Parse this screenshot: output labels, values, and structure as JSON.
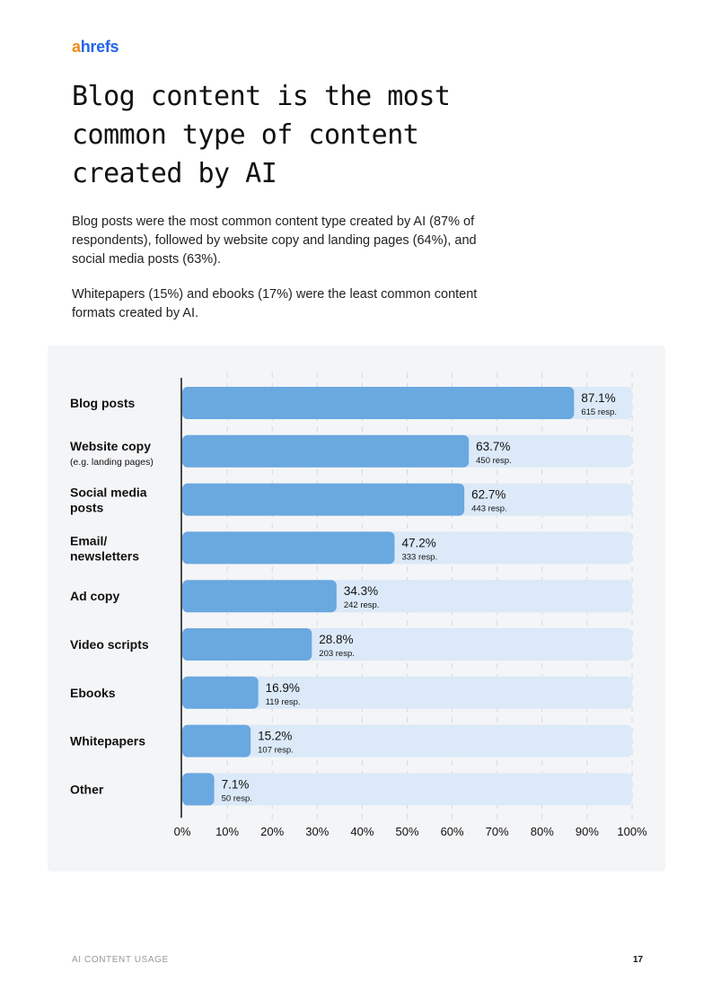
{
  "brand": {
    "logo_a": "a",
    "logo_rest": "hrefs"
  },
  "title": "Blog content is the most common type of content created by AI",
  "paragraphs": [
    "Blog posts were the most common content type created by AI (87% of respondents), followed by website copy and landing pages (64%), and social media posts (63%).",
    "Whitepapers (15%) and ebooks (17%) were the least common content formats created by AI."
  ],
  "footer": {
    "section": "AI CONTENT USAGE",
    "page": "17"
  },
  "colors": {
    "bar": "#6aa8e0",
    "track": "#dbe9f8",
    "panel": "#f4f5f7"
  },
  "chart_data": {
    "type": "bar",
    "orientation": "horizontal",
    "categories": [
      {
        "label": [
          "Blog posts"
        ]
      },
      {
        "label": [
          "Website copy"
        ],
        "sub": "(e.g. landing pages)"
      },
      {
        "label": [
          "Social media",
          "posts"
        ]
      },
      {
        "label": [
          "Email/",
          "newsletters"
        ]
      },
      {
        "label": [
          "Ad copy"
        ]
      },
      {
        "label": [
          "Video scripts"
        ]
      },
      {
        "label": [
          "Ebooks"
        ]
      },
      {
        "label": [
          "Whitepapers"
        ]
      },
      {
        "label": [
          "Other"
        ]
      }
    ],
    "values": [
      87.1,
      63.7,
      62.7,
      47.2,
      34.3,
      28.8,
      16.9,
      15.2,
      7.1
    ],
    "value_labels": [
      "87.1%",
      "63.7%",
      "62.7%",
      "47.2%",
      "34.3%",
      "28.8%",
      "16.9%",
      "15.2%",
      "7.1%"
    ],
    "responses": [
      "615 resp.",
      "450 resp.",
      "443 resp.",
      "333 resp.",
      "242 resp.",
      "203 resp.",
      "119 resp.",
      "107 resp.",
      "50 resp."
    ],
    "xlim": [
      0,
      100
    ],
    "xticks": [
      "0%",
      "10%",
      "20%",
      "30%",
      "40%",
      "50%",
      "60%",
      "70%",
      "80%",
      "90%",
      "100%"
    ],
    "grid": true
  }
}
